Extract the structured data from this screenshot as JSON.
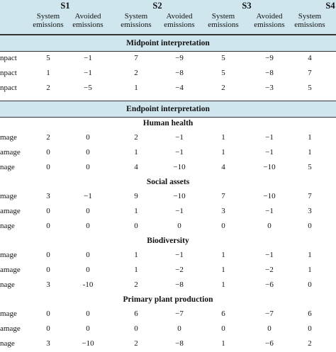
{
  "header": {
    "groups": [
      "S1",
      "S2",
      "S3",
      "S4"
    ],
    "subcols": [
      "System\nemissions",
      "Avoided\nemissions",
      "System\nemissions",
      "Avoided\nemissions",
      "System\nemissions",
      "Avoided\nemissions",
      "System\nemissions"
    ]
  },
  "midpoint": {
    "title": "Midpoint interpretation",
    "rows": [
      {
        "label": "npact",
        "values": [
          "5",
          "−1",
          "7",
          "−9",
          "5",
          "−9",
          "4"
        ]
      },
      {
        "label": "npact",
        "values": [
          "1",
          "−1",
          "2",
          "−8",
          "5",
          "−8",
          "7"
        ]
      },
      {
        "label": "npact",
        "values": [
          "2",
          "−5",
          "1",
          "−4",
          "2",
          "−3",
          "5"
        ]
      }
    ]
  },
  "endpoint": {
    "title": "Endpoint interpretation",
    "sections": [
      {
        "title": "Human health",
        "rows": [
          {
            "label": "mage",
            "values": [
              "2",
              "0",
              "2",
              "−1",
              "1",
              "−1",
              "1"
            ]
          },
          {
            "label": "amage",
            "values": [
              "0",
              "0",
              "1",
              "−1",
              "1",
              "−1",
              "1"
            ]
          },
          {
            "label": "nage",
            "values": [
              "0",
              "0",
              "4",
              "−10",
              "4",
              "−10",
              "5"
            ]
          }
        ]
      },
      {
        "title": "Social assets",
        "rows": [
          {
            "label": "mage",
            "values": [
              "3",
              "−1",
              "9",
              "−10",
              "7",
              "−10",
              "7"
            ]
          },
          {
            "label": "amage",
            "values": [
              "0",
              "0",
              "1",
              "−1",
              "3",
              "−1",
              "3"
            ]
          },
          {
            "label": "nage",
            "values": [
              "0",
              "0",
              "0",
              "0",
              "0",
              "0",
              "0"
            ]
          }
        ]
      },
      {
        "title": "Biodiversity",
        "rows": [
          {
            "label": "mage",
            "values": [
              "0",
              "0",
              "1",
              "−1",
              "1",
              "−1",
              "1"
            ]
          },
          {
            "label": "amage",
            "values": [
              "0",
              "0",
              "1",
              "−2",
              "1",
              "−2",
              "1"
            ]
          },
          {
            "label": "nage",
            "values": [
              "3",
              "-10",
              "2",
              "−8",
              "1",
              "−6",
              "0"
            ]
          }
        ]
      },
      {
        "title": "Primary plant production",
        "rows": [
          {
            "label": "mage",
            "values": [
              "0",
              "0",
              "6",
              "−7",
              "6",
              "−7",
              "6"
            ]
          },
          {
            "label": "amage",
            "values": [
              "0",
              "0",
              "0",
              "0",
              "0",
              "0",
              "0"
            ]
          },
          {
            "label": "nage",
            "values": [
              "3",
              "−10",
              "2",
              "−8",
              "1",
              "−6",
              "2"
            ]
          }
        ]
      }
    ]
  }
}
